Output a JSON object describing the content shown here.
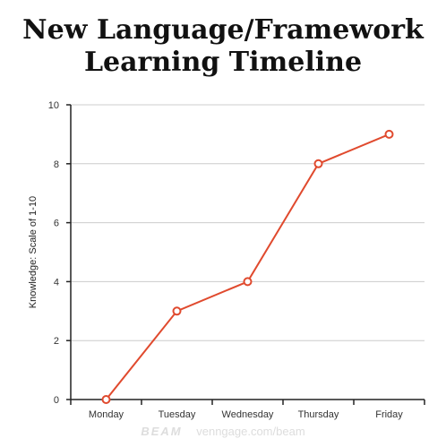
{
  "chart_data": {
    "type": "line",
    "title_lines": [
      "New Language/Framework",
      "Learning Timeline"
    ],
    "xlabel": "",
    "ylabel": "Knowledge: Scale of 1-10",
    "categories": [
      "Monday",
      "Tuesday",
      "Wednesday",
      "Thursday",
      "Friday"
    ],
    "series": [
      {
        "values": [
          0,
          3,
          4,
          8,
          9
        ],
        "color": "#e04a2e"
      }
    ],
    "ylim": [
      0,
      10
    ],
    "yticks": [
      0,
      2,
      4,
      6,
      8,
      10
    ],
    "grid": true,
    "legend": "none"
  },
  "watermark": {
    "brand": "BEAM",
    "url": "venngage.com/beam"
  }
}
